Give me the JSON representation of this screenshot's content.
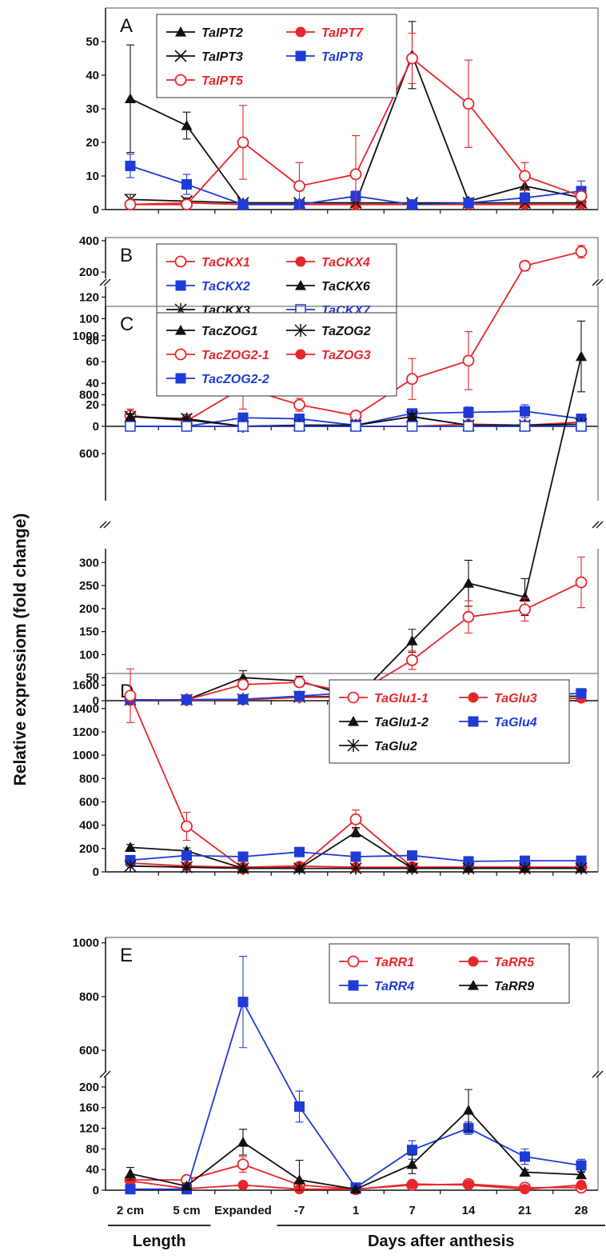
{
  "y_axis_label": "Relative expressiom (fold change)",
  "x_groups": [
    {
      "label": "Length",
      "from": 0,
      "to": 1
    },
    {
      "label": "Days after anthesis",
      "from": 3,
      "to": 8
    }
  ],
  "colors": {
    "red": "#e8262a",
    "blue": "#1f3bd6",
    "black": "#111111"
  },
  "chart_data": [
    {
      "type": "line",
      "panel": "A",
      "categories": [
        "2 cm",
        "5 cm",
        "Expanded",
        "-7",
        "1",
        "7",
        "14",
        "21",
        "28"
      ],
      "show_xlabels": false,
      "segments": [
        {
          "from": 0,
          "to": 60,
          "ticks": [
            0,
            10,
            20,
            30,
            40,
            50
          ]
        }
      ],
      "legend": {
        "position": "top-left",
        "columns": 2
      },
      "series": [
        {
          "name": "TaIPT2",
          "color": "#111111",
          "marker": "triangle",
          "values": [
            33,
            25,
            2,
            2,
            2,
            46,
            2.5,
            7,
            3.5
          ],
          "errors": [
            16,
            4,
            0,
            0,
            0,
            10,
            0.5,
            2,
            1
          ]
        },
        {
          "name": "TaIPT7",
          "color": "#e8262a",
          "marker": "circle",
          "values": [
            1.5,
            2,
            1.5,
            1.5,
            1.5,
            1.5,
            1.5,
            1.5,
            1.5
          ],
          "errors": [
            0.5,
            0.5,
            0,
            0,
            0,
            0,
            0,
            0,
            0
          ]
        },
        {
          "name": "TaIPT3",
          "color": "#111111",
          "marker": "x",
          "values": [
            3,
            2.5,
            2,
            2,
            2,
            2,
            2,
            2,
            2
          ],
          "errors": [
            1.5,
            1,
            0,
            0,
            0,
            0,
            0,
            0,
            0
          ]
        },
        {
          "name": "TaIPT8",
          "color": "#1f3bd6",
          "marker": "square",
          "values": [
            13,
            7.5,
            1.5,
            1.5,
            4,
            1.5,
            2,
            3.5,
            5.5
          ],
          "errors": [
            3.5,
            3,
            0,
            0,
            1.5,
            0.5,
            0.5,
            1,
            3
          ]
        },
        {
          "name": "TaIPT5",
          "color": "#e8262a",
          "marker": "circle-open",
          "values": [
            1.5,
            1.5,
            20,
            7,
            10.5,
            45,
            31.5,
            10,
            4
          ],
          "errors": [
            0.5,
            0.5,
            11,
            7,
            11.5,
            7.5,
            13,
            4,
            1
          ]
        }
      ]
    },
    {
      "type": "line",
      "panel": "B",
      "categories": [
        "2 cm",
        "5 cm",
        "Expanded",
        "-7",
        "1",
        "7",
        "14",
        "21",
        "28"
      ],
      "show_xlabels": false,
      "segments": [
        {
          "from": 0,
          "to": 130,
          "ticks": [
            0,
            20,
            40,
            60,
            80,
            100,
            120
          ]
        },
        {
          "from": 160,
          "to": 420,
          "ticks": [
            200,
            400
          ]
        }
      ],
      "legend": {
        "position": "top-left",
        "columns": 2
      },
      "series": [
        {
          "name": "TaCKX1",
          "color": "#e8262a",
          "marker": "circle-open",
          "values": [
            10,
            5,
            36,
            20,
            10,
            44,
            61,
            240,
            330
          ],
          "errors": [
            6,
            4,
            20,
            6,
            4,
            19,
            27,
            30,
            40
          ]
        },
        {
          "name": "TaCKX4",
          "color": "#e8262a",
          "marker": "circle",
          "values": [
            0,
            0,
            0,
            0,
            0,
            0,
            2,
            1,
            4
          ],
          "errors": [
            0,
            0,
            0,
            0,
            0,
            0,
            0,
            0,
            0
          ]
        },
        {
          "name": "TaCKX2",
          "color": "#1f3bd6",
          "marker": "square",
          "values": [
            0,
            0,
            8,
            7,
            1,
            12,
            13,
            14,
            7
          ],
          "errors": [
            0,
            0,
            4,
            3,
            1,
            3,
            5,
            6,
            3
          ]
        },
        {
          "name": "TaCKX6",
          "color": "#111111",
          "marker": "triangle",
          "values": [
            9,
            6,
            0,
            1,
            1,
            9,
            1,
            1,
            2
          ],
          "errors": [
            2,
            2,
            0,
            0,
            0,
            2,
            0,
            0,
            0
          ]
        },
        {
          "name": "TaCKX3",
          "color": "#111111",
          "marker": "asterisk",
          "values": [
            9,
            7,
            0,
            1,
            1,
            9,
            1,
            1,
            2
          ],
          "errors": [
            3,
            4,
            0,
            0,
            0,
            3,
            0,
            0,
            0
          ]
        },
        {
          "name": "TaCKX7",
          "color": "#1f3bd6",
          "marker": "square-open",
          "values": [
            0,
            0,
            0,
            0,
            0,
            0,
            0,
            0,
            0
          ],
          "errors": [
            0,
            0,
            0,
            0,
            0,
            0,
            0,
            0,
            0
          ]
        }
      ]
    },
    {
      "type": "line",
      "panel": "C",
      "categories": [
        "2 cm",
        "5 cm",
        "Expanded",
        "-7",
        "1",
        "7",
        "14",
        "21",
        "28"
      ],
      "show_xlabels": false,
      "segments": [
        {
          "from": 0,
          "to": 330,
          "ticks": [
            0,
            50,
            100,
            150,
            200,
            250,
            300
          ]
        },
        {
          "from": 440,
          "to": 1100,
          "ticks": [
            600,
            800,
            1000
          ]
        }
      ],
      "legend": {
        "position": "top-left",
        "columns": 2
      },
      "series": [
        {
          "name": "TacZOG1",
          "color": "#111111",
          "marker": "triangle",
          "values": [
            2,
            2,
            50,
            43,
            5,
            130,
            255,
            225,
            930
          ],
          "errors": [
            0,
            0,
            15,
            10,
            2,
            25,
            50,
            40,
            120
          ]
        },
        {
          "name": "TaZOG2",
          "color": "#111111",
          "marker": "asterisk",
          "values": [
            2,
            2,
            3,
            8,
            10,
            5,
            5,
            8,
            10
          ],
          "errors": [
            0,
            0,
            0,
            0,
            0,
            0,
            0,
            0,
            0
          ]
        },
        {
          "name": "TacZOG2-1",
          "color": "#e8262a",
          "marker": "circle-open",
          "values": [
            2,
            2,
            35,
            40,
            15,
            88,
            182,
            198,
            257
          ],
          "errors": [
            0,
            0,
            10,
            10,
            5,
            20,
            35,
            25,
            55
          ]
        },
        {
          "name": "TaZOG3",
          "color": "#e8262a",
          "marker": "circle",
          "values": [
            2,
            1,
            2,
            7,
            8,
            3,
            2,
            4,
            5
          ],
          "errors": [
            0,
            0,
            0,
            0,
            0,
            0,
            0,
            0,
            0
          ]
        },
        {
          "name": "TacZOG2-2",
          "color": "#1f3bd6",
          "marker": "square",
          "values": [
            2,
            2,
            3,
            10,
            18,
            10,
            5,
            10,
            16
          ],
          "errors": [
            0,
            0,
            0,
            0,
            0,
            0,
            0,
            0,
            0
          ]
        }
      ]
    },
    {
      "type": "line",
      "panel": "D",
      "categories": [
        "2 cm",
        "5 cm",
        "Expanded",
        "-7",
        "1",
        "7",
        "14",
        "21",
        "28"
      ],
      "show_xlabels": false,
      "segments": [
        {
          "from": 0,
          "to": 1700,
          "ticks": [
            0,
            200,
            400,
            600,
            800,
            1000,
            1200,
            1400,
            1600
          ]
        }
      ],
      "legend": {
        "position": "top-right",
        "columns": 2
      },
      "series": [
        {
          "name": "TaGlu1-1",
          "color": "#e8262a",
          "marker": "circle-open",
          "values": [
            1510,
            390,
            30,
            40,
            450,
            40,
            40,
            40,
            40
          ],
          "errors": [
            230,
            120,
            0,
            0,
            80,
            0,
            0,
            0,
            0
          ]
        },
        {
          "name": "TaGlu3",
          "color": "#e8262a",
          "marker": "circle",
          "values": [
            75,
            50,
            40,
            50,
            40,
            40,
            40,
            40,
            40
          ],
          "errors": [
            0,
            0,
            0,
            0,
            0,
            0,
            0,
            0,
            0
          ]
        },
        {
          "name": "TaGlu1-2",
          "color": "#111111",
          "marker": "triangle",
          "values": [
            210,
            180,
            30,
            30,
            340,
            30,
            30,
            30,
            30
          ],
          "errors": [
            25,
            25,
            0,
            0,
            40,
            0,
            0,
            0,
            0
          ]
        },
        {
          "name": "TaGlu4",
          "color": "#1f3bd6",
          "marker": "square",
          "values": [
            100,
            140,
            130,
            170,
            130,
            140,
            90,
            95,
            95
          ],
          "errors": [
            0,
            0,
            0,
            0,
            0,
            0,
            0,
            0,
            0
          ]
        },
        {
          "name": "TaGlu2",
          "color": "#111111",
          "marker": "asterisk",
          "values": [
            50,
            40,
            30,
            30,
            30,
            30,
            30,
            30,
            30
          ],
          "errors": [
            0,
            0,
            0,
            0,
            0,
            0,
            0,
            0,
            0
          ]
        }
      ]
    },
    {
      "type": "line",
      "panel": "E",
      "categories": [
        "2 cm",
        "5 cm",
        "Expanded",
        "-7",
        "1",
        "7",
        "14",
        "21",
        "28"
      ],
      "show_xlabels": true,
      "segments": [
        {
          "from": 0,
          "to": 220,
          "ticks": [
            0,
            40,
            80,
            120,
            160,
            200
          ]
        },
        {
          "from": 520,
          "to": 1020,
          "ticks": [
            600,
            800,
            1000
          ]
        }
      ],
      "legend": {
        "position": "top-right",
        "columns": 2
      },
      "series": [
        {
          "name": "TaRR1",
          "color": "#e8262a",
          "marker": "circle-open",
          "values": [
            20,
            20,
            50,
            10,
            2,
            10,
            12,
            5,
            5
          ],
          "errors": [
            5,
            5,
            15,
            5,
            0,
            3,
            8,
            4,
            3
          ]
        },
        {
          "name": "TaRR5",
          "color": "#e8262a",
          "marker": "circle",
          "values": [
            18,
            3,
            10,
            2,
            2,
            12,
            10,
            2,
            10
          ],
          "errors": [
            0,
            0,
            0,
            0,
            0,
            0,
            0,
            0,
            0
          ]
        },
        {
          "name": "TaRR4",
          "color": "#1f3bd6",
          "marker": "square",
          "values": [
            2,
            2,
            780,
            162,
            5,
            78,
            120,
            65,
            48
          ],
          "errors": [
            0,
            0,
            170,
            30,
            0,
            18,
            12,
            15,
            12
          ]
        },
        {
          "name": "TaRR9",
          "color": "#111111",
          "marker": "triangle",
          "values": [
            32,
            8,
            93,
            20,
            2,
            50,
            155,
            35,
            30
          ],
          "errors": [
            12,
            6,
            25,
            38,
            0,
            18,
            40,
            5,
            5
          ]
        }
      ]
    }
  ]
}
